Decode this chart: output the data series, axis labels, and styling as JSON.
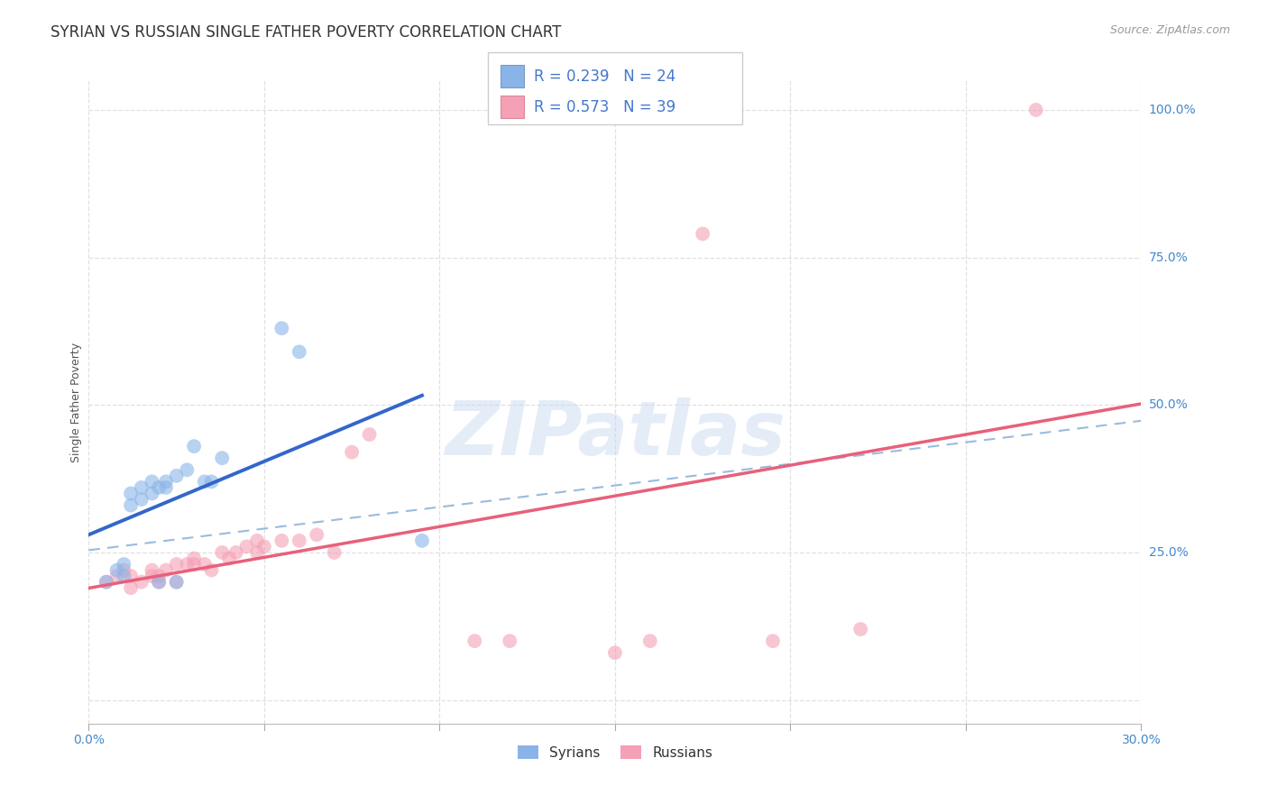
{
  "title": "SYRIAN VS RUSSIAN SINGLE FATHER POVERTY CORRELATION CHART",
  "source": "Source: ZipAtlas.com",
  "ylabel_label": "Single Father Poverty",
  "xlim": [
    0.0,
    0.3
  ],
  "ylim": [
    -0.04,
    1.05
  ],
  "x_ticks": [
    0.0,
    0.05,
    0.1,
    0.15,
    0.2,
    0.25,
    0.3
  ],
  "x_tick_labels": [
    "0.0%",
    "",
    "",
    "",
    "",
    "",
    "30.0%"
  ],
  "y_ticks": [
    0.0,
    0.25,
    0.5,
    0.75,
    1.0
  ],
  "y_tick_labels": [
    "",
    "25.0%",
    "50.0%",
    "75.0%",
    "100.0%"
  ],
  "syrian_color": "#8ab4e8",
  "russian_color": "#f4a0b5",
  "syrian_line_color": "#3366cc",
  "russian_line_color": "#e8607a",
  "dashed_line_color": "#99bbdd",
  "background_color": "#ffffff",
  "grid_color": "#e0e0e0",
  "tick_label_color": "#4488cc",
  "legend_R_N_color": "#4477cc",
  "syrian_scatter_x": [
    0.005,
    0.008,
    0.01,
    0.01,
    0.012,
    0.012,
    0.015,
    0.015,
    0.018,
    0.018,
    0.02,
    0.02,
    0.022,
    0.022,
    0.025,
    0.025,
    0.028,
    0.03,
    0.033,
    0.035,
    0.038,
    0.055,
    0.06,
    0.095
  ],
  "syrian_scatter_y": [
    0.2,
    0.22,
    0.21,
    0.23,
    0.35,
    0.33,
    0.34,
    0.36,
    0.37,
    0.35,
    0.2,
    0.36,
    0.37,
    0.36,
    0.38,
    0.2,
    0.39,
    0.43,
    0.37,
    0.37,
    0.41,
    0.63,
    0.59,
    0.27
  ],
  "russian_scatter_x": [
    0.005,
    0.008,
    0.01,
    0.012,
    0.012,
    0.015,
    0.018,
    0.018,
    0.02,
    0.02,
    0.022,
    0.025,
    0.025,
    0.028,
    0.03,
    0.03,
    0.033,
    0.035,
    0.038,
    0.04,
    0.042,
    0.045,
    0.048,
    0.048,
    0.05,
    0.055,
    0.06,
    0.065,
    0.07,
    0.075,
    0.08,
    0.11,
    0.12,
    0.15,
    0.16,
    0.175,
    0.195,
    0.22,
    0.27
  ],
  "russian_scatter_y": [
    0.2,
    0.21,
    0.22,
    0.19,
    0.21,
    0.2,
    0.21,
    0.22,
    0.21,
    0.2,
    0.22,
    0.23,
    0.2,
    0.23,
    0.24,
    0.23,
    0.23,
    0.22,
    0.25,
    0.24,
    0.25,
    0.26,
    0.27,
    0.25,
    0.26,
    0.27,
    0.27,
    0.28,
    0.25,
    0.42,
    0.45,
    0.1,
    0.1,
    0.08,
    0.1,
    0.79,
    0.1,
    0.12,
    1.0
  ],
  "syrian_R": 0.239,
  "syrian_N": 24,
  "russian_R": 0.573,
  "russian_N": 39,
  "watermark": "ZIPatlas",
  "title_fontsize": 12,
  "axis_label_fontsize": 9,
  "tick_fontsize": 10,
  "legend_fontsize": 12,
  "marker_size": 130,
  "marker_alpha": 0.6
}
